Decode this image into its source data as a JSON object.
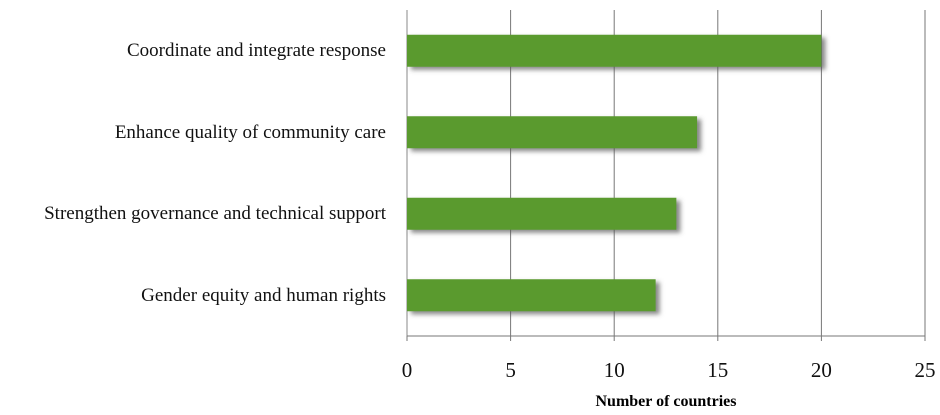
{
  "chart_data": {
    "type": "bar",
    "orientation": "horizontal",
    "categories": [
      "Coordinate and integrate response",
      "Enhance quality of community care",
      "Strengthen governance and technical support",
      "Gender equity and human rights"
    ],
    "values": [
      20,
      14,
      13,
      12
    ],
    "color": "#5a9a2e",
    "xlabel": "Number of countries",
    "xlim": [
      0,
      25
    ],
    "xticks": [
      0,
      5,
      10,
      15,
      20,
      25
    ],
    "grid": true
  }
}
